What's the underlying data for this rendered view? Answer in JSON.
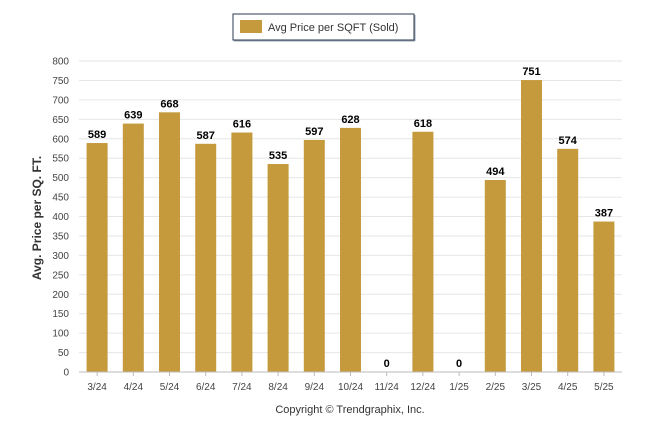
{
  "chart_data": {
    "type": "bar",
    "categories": [
      "3/24",
      "4/24",
      "5/24",
      "6/24",
      "7/24",
      "8/24",
      "9/24",
      "10/24",
      "11/24",
      "12/24",
      "1/25",
      "2/25",
      "3/25",
      "4/25",
      "5/25"
    ],
    "series": [
      {
        "name": "Avg Price per SQFT (Sold)",
        "values": [
          589,
          639,
          668,
          587,
          616,
          535,
          597,
          628,
          0,
          618,
          0,
          494,
          751,
          574,
          387
        ]
      }
    ],
    "ylabel": "Avg. Price per SQ. FT.",
    "ylim": [
      0,
      800
    ],
    "yticks": [
      0,
      50,
      100,
      150,
      200,
      250,
      300,
      350,
      400,
      450,
      500,
      550,
      600,
      650,
      700,
      750,
      800
    ],
    "grid": true,
    "legend": "top-center",
    "bar_color": "#c59a3d"
  },
  "footer": {
    "copyright": "Copyright © Trendgraphix, Inc."
  }
}
